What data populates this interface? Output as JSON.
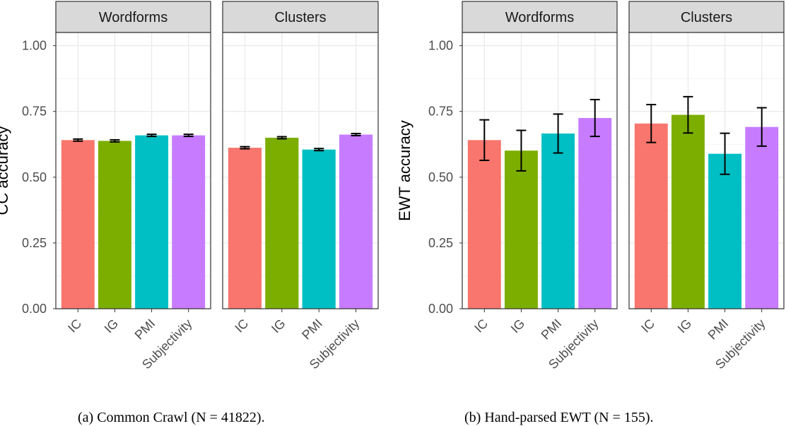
{
  "chart_data": [
    {
      "type": "bar",
      "ylabel": "CC accuracy",
      "ylim": [
        0,
        1.05
      ],
      "yticks": [
        "0.00",
        "0.25",
        "0.50",
        "0.75",
        "1.00"
      ],
      "categories": [
        "IC",
        "IG",
        "PMI",
        "Subjectivity"
      ],
      "colors": [
        "#F8766D",
        "#7CAE00",
        "#00BFC4",
        "#C77CFF"
      ],
      "grid": true,
      "facets": [
        {
          "name": "Wordforms",
          "values": [
            0.641,
            0.638,
            0.659,
            0.659
          ],
          "err": [
            0.004,
            0.004,
            0.004,
            0.004
          ]
        },
        {
          "name": "Clusters",
          "values": [
            0.612,
            0.65,
            0.605,
            0.662
          ],
          "err": [
            0.004,
            0.004,
            0.004,
            0.004
          ]
        }
      ],
      "caption": "(a) Common Crawl (N = 41822)."
    },
    {
      "type": "bar",
      "ylabel": "EWT accuracy",
      "ylim": [
        0,
        1.05
      ],
      "yticks": [
        "0.00",
        "0.25",
        "0.50",
        "0.75",
        "1.00"
      ],
      "categories": [
        "IC",
        "IG",
        "PMI",
        "Subjectivity"
      ],
      "colors": [
        "#F8766D",
        "#7CAE00",
        "#00BFC4",
        "#C77CFF"
      ],
      "grid": true,
      "facets": [
        {
          "name": "Wordforms",
          "values": [
            0.641,
            0.601,
            0.666,
            0.725
          ],
          "err": [
            0.077,
            0.077,
            0.074,
            0.07
          ]
        },
        {
          "name": "Clusters",
          "values": [
            0.704,
            0.737,
            0.589,
            0.691
          ],
          "err": [
            0.072,
            0.069,
            0.078,
            0.073
          ]
        }
      ],
      "caption": "(b) Hand-parsed EWT (N = 155)."
    }
  ]
}
